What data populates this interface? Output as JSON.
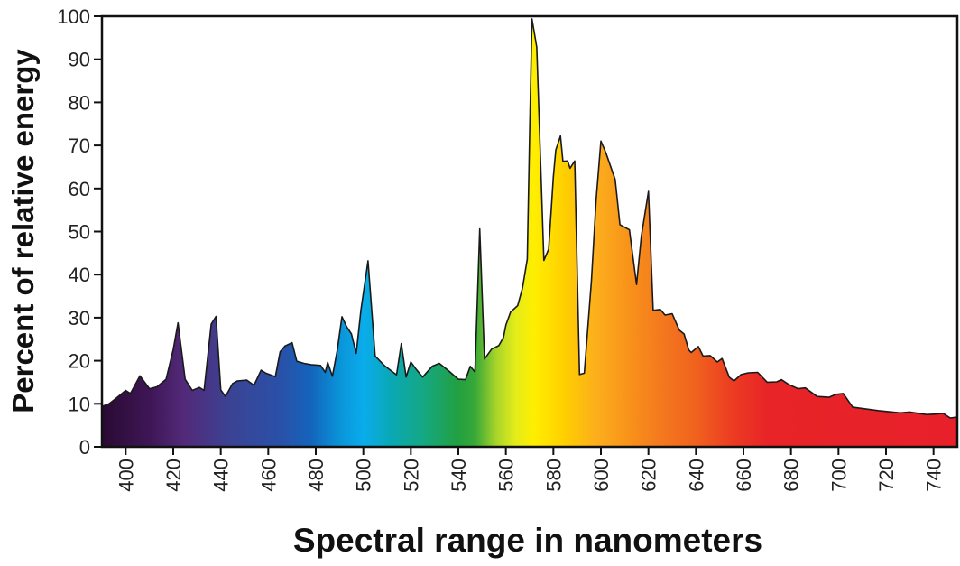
{
  "chart_data": {
    "type": "area",
    "title": "",
    "xlabel": "Spectral range in nanometers",
    "ylabel": "Percent of relative energy",
    "xlim": [
      390,
      750
    ],
    "ylim": [
      0,
      100
    ],
    "x_ticks": [
      400,
      420,
      440,
      460,
      480,
      500,
      520,
      540,
      560,
      580,
      600,
      620,
      640,
      660,
      680,
      700,
      720,
      740
    ],
    "x_tick_labels": [
      "400",
      "420",
      "440",
      "460",
      "480",
      "500",
      "520",
      "540",
      "560",
      "580",
      "600",
      "620",
      "640",
      "660",
      "680",
      "700",
      "720",
      "740"
    ],
    "y_ticks": [
      0,
      10,
      20,
      30,
      40,
      50,
      60,
      70,
      80,
      90,
      100
    ],
    "y_tick_labels": [
      "0",
      "10",
      "20",
      "30",
      "40",
      "50",
      "60",
      "70",
      "80",
      "90",
      "100"
    ],
    "grid": false,
    "legend": "none",
    "fill": "visible-spectrum gradient by wavelength",
    "series": [
      {
        "x": [
          390,
          393,
          396,
          400,
          402,
          406,
          410,
          413,
          417,
          420,
          422,
          425,
          428,
          431,
          433,
          436,
          438,
          440,
          442,
          445,
          447,
          451,
          454,
          457,
          459,
          463,
          465,
          467,
          470,
          472,
          475,
          478,
          482,
          484,
          485,
          487,
          489,
          491,
          493,
          495,
          497,
          499,
          502,
          505,
          509,
          514,
          516,
          518,
          520,
          522,
          525,
          529,
          532,
          536,
          540,
          543,
          545,
          547,
          549,
          551,
          554,
          557,
          559,
          560,
          562,
          565,
          567,
          569,
          570,
          571,
          573,
          576,
          578,
          580,
          581,
          583,
          584,
          586,
          587,
          589,
          591,
          593,
          596,
          598,
          600,
          602,
          606,
          608,
          612,
          615,
          617,
          620,
          622,
          625,
          627,
          630,
          633,
          635,
          637,
          638,
          641,
          643,
          646,
          649,
          651,
          654,
          656,
          659,
          662,
          666,
          670,
          674,
          676,
          679,
          683,
          686,
          691,
          696,
          699,
          702,
          706,
          717,
          726,
          730,
          737,
          741,
          744,
          747,
          750
        ],
        "y": [
          9.4,
          10,
          11.3,
          13.1,
          12.4,
          16.5,
          13.5,
          13.9,
          15.7,
          22.6,
          28.8,
          15.7,
          13.1,
          13.8,
          13.1,
          28.5,
          30.3,
          13.2,
          11.7,
          14.7,
          15.3,
          15.5,
          14.3,
          17.8,
          17.1,
          16.3,
          22.1,
          23.4,
          24.2,
          19.9,
          19.4,
          19.1,
          18.9,
          17.3,
          19.6,
          16.4,
          22.3,
          30.2,
          27.9,
          26.2,
          21.7,
          31.7,
          43.2,
          21.1,
          18.8,
          16.7,
          24,
          16.2,
          19.7,
          18.2,
          16.2,
          18.7,
          19.4,
          17.6,
          15.7,
          15.6,
          18.7,
          17.4,
          50.6,
          20.4,
          22.7,
          23.5,
          25.4,
          28.3,
          31.3,
          32.8,
          36.9,
          43.6,
          72.7,
          99.4,
          92.8,
          43.3,
          45.9,
          62.7,
          68.9,
          72.2,
          66.3,
          66.4,
          64.7,
          66.4,
          16.8,
          17.1,
          38.6,
          57.4,
          71,
          68.4,
          62.1,
          51.6,
          50.4,
          37.7,
          48.9,
          59.3,
          31.7,
          31.9,
          30.6,
          30.9,
          27.1,
          26.2,
          22.5,
          21.9,
          23.3,
          21.1,
          21.2,
          19.7,
          20.5,
          16.2,
          15.3,
          16.8,
          17.2,
          17.3,
          15,
          15.1,
          15.6,
          14.5,
          13.5,
          13.7,
          11.7,
          11.5,
          12.2,
          12.4,
          9.2,
          8.4,
          7.9,
          8.1,
          7.5,
          7.6,
          7.8,
          6.7,
          6.9
        ]
      }
    ]
  }
}
